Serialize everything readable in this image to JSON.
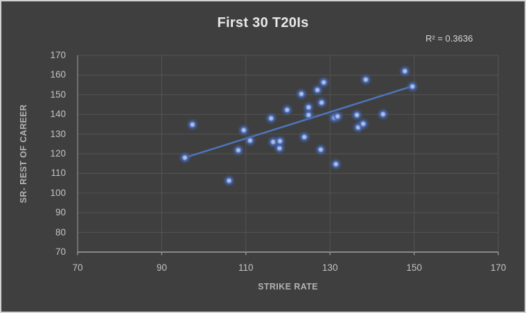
{
  "window": {
    "background": "#3f3f3f",
    "border_color": "#d3d3d3"
  },
  "chart_data": {
    "type": "scatter",
    "title": "First 30 T20Is",
    "annotation": "R² = 0.3636",
    "r_squared": 0.3636,
    "xlabel": "STRIKE RATE",
    "ylabel": "SR- REST OF CAREER",
    "xlim": [
      70,
      170
    ],
    "ylim": [
      70,
      170
    ],
    "x_ticks": [
      70,
      90,
      110,
      130,
      150,
      170
    ],
    "y_ticks": [
      70,
      80,
      90,
      100,
      110,
      120,
      130,
      140,
      150,
      160,
      170
    ],
    "grid": true,
    "legend": false,
    "points": [
      [
        95.5,
        118
      ],
      [
        97.3,
        134.8
      ],
      [
        106,
        106.3
      ],
      [
        108.2,
        121.8
      ],
      [
        109.5,
        132
      ],
      [
        111,
        126.7
      ],
      [
        116,
        138
      ],
      [
        116.5,
        126
      ],
      [
        118,
        122.8
      ],
      [
        118.1,
        126.4
      ],
      [
        119.8,
        142.3
      ],
      [
        123.2,
        150.4
      ],
      [
        123.9,
        128.5
      ],
      [
        124.9,
        139.7
      ],
      [
        124.9,
        143.6
      ],
      [
        127,
        152.4
      ],
      [
        127.8,
        122.1
      ],
      [
        128,
        146
      ],
      [
        128.5,
        156.3
      ],
      [
        131,
        138.3
      ],
      [
        131.8,
        139
      ],
      [
        131.4,
        114.7
      ],
      [
        136.4,
        139.7
      ],
      [
        136.7,
        133.4
      ],
      [
        137.9,
        135.2
      ],
      [
        138.5,
        157.7
      ],
      [
        142.6,
        140.1
      ],
      [
        147.8,
        162
      ],
      [
        149.6,
        154.2
      ]
    ],
    "trendline": {
      "x1": 95.5,
      "y1": 118,
      "x2": 149.8,
      "y2": 154.5
    },
    "colors": {
      "marker_core": "#aebce6",
      "marker_glow": "#3f63ad",
      "trendline": "#4d74ba",
      "gridline": "#545454",
      "axis_line": "#a2a2a2",
      "side_axis_line": "#8a8a8a",
      "tick_label": "#c3c3c3",
      "axis_title": "#b3b3b3",
      "title": "#e9e9e9",
      "annotation": "#d6d6d6"
    }
  }
}
